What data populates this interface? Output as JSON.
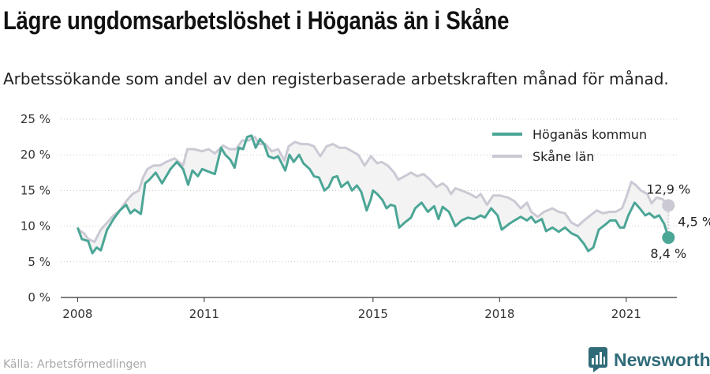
{
  "title": "Lägre ungdomsarbetslöshet i Höganäs än i Skåne",
  "subtitle": "Arbetssökande som andel av den registerbaserade arbetskraften månad för månad.",
  "source": "Källa: Arbetsförmedlingen",
  "brand": "Newsworthy",
  "colors": {
    "hoganas": "#4ca696",
    "skane": "#cbc9d4",
    "band": "#f3f3f3",
    "brand": "#2f6b78"
  },
  "chart_data": {
    "type": "line",
    "x_unit": "year (monthly data)",
    "xlim": [
      2007.6,
      2022.2
    ],
    "xticks": [
      2008,
      2011,
      2015,
      2018,
      2021
    ],
    "xtick_labels": [
      "2008",
      "2011",
      "2015",
      "2018",
      "2021"
    ],
    "ylim": [
      0,
      25
    ],
    "yticks": [
      0,
      5,
      10,
      15,
      20,
      25
    ],
    "ytick_labels": [
      "0 %",
      "5 %",
      "10 %",
      "15 %",
      "20 %",
      "25 %"
    ],
    "grid": "horizontal dotted",
    "legend_position": "top-right",
    "series": [
      {
        "name": "Höganäs kommun",
        "color": "#4ca696",
        "points": [
          [
            2008.0,
            9.8
          ],
          [
            2008.1,
            8.2
          ],
          [
            2008.25,
            7.9
          ],
          [
            2008.35,
            6.2
          ],
          [
            2008.45,
            7.0
          ],
          [
            2008.55,
            6.6
          ],
          [
            2008.7,
            9.5
          ],
          [
            2008.85,
            11.0
          ],
          [
            2009.0,
            12.2
          ],
          [
            2009.15,
            13.0
          ],
          [
            2009.25,
            11.8
          ],
          [
            2009.35,
            12.3
          ],
          [
            2009.5,
            11.7
          ],
          [
            2009.6,
            16.0
          ],
          [
            2009.7,
            16.5
          ],
          [
            2009.85,
            17.5
          ],
          [
            2010.0,
            16.0
          ],
          [
            2010.2,
            18.0
          ],
          [
            2010.35,
            19.0
          ],
          [
            2010.5,
            18.0
          ],
          [
            2010.62,
            15.8
          ],
          [
            2010.72,
            17.8
          ],
          [
            2010.85,
            17.0
          ],
          [
            2010.95,
            18.0
          ],
          [
            2011.25,
            17.3
          ],
          [
            2011.4,
            21.0
          ],
          [
            2011.5,
            20.0
          ],
          [
            2011.62,
            19.3
          ],
          [
            2011.72,
            18.2
          ],
          [
            2011.82,
            21.0
          ],
          [
            2011.92,
            20.8
          ],
          [
            2012.02,
            22.5
          ],
          [
            2012.12,
            22.7
          ],
          [
            2012.22,
            21.0
          ],
          [
            2012.32,
            22.2
          ],
          [
            2012.42,
            21.5
          ],
          [
            2012.52,
            19.8
          ],
          [
            2012.65,
            19.5
          ],
          [
            2012.75,
            19.8
          ],
          [
            2012.92,
            17.8
          ],
          [
            2013.02,
            20.0
          ],
          [
            2013.12,
            19.0
          ],
          [
            2013.25,
            20.0
          ],
          [
            2013.35,
            18.8
          ],
          [
            2013.5,
            18.0
          ],
          [
            2013.6,
            17.0
          ],
          [
            2013.72,
            16.8
          ],
          [
            2013.85,
            15.0
          ],
          [
            2013.95,
            15.5
          ],
          [
            2014.05,
            16.8
          ],
          [
            2014.15,
            17.0
          ],
          [
            2014.25,
            15.5
          ],
          [
            2014.4,
            16.2
          ],
          [
            2014.5,
            15.0
          ],
          [
            2014.62,
            15.7
          ],
          [
            2014.72,
            14.8
          ],
          [
            2014.85,
            12.2
          ],
          [
            2014.95,
            13.8
          ],
          [
            2015.0,
            15.0
          ],
          [
            2015.1,
            14.5
          ],
          [
            2015.22,
            13.7
          ],
          [
            2015.32,
            12.5
          ],
          [
            2015.42,
            13.0
          ],
          [
            2015.52,
            12.8
          ],
          [
            2015.62,
            9.8
          ],
          [
            2015.75,
            10.5
          ],
          [
            2015.9,
            11.2
          ],
          [
            2016.0,
            12.5
          ],
          [
            2016.15,
            13.3
          ],
          [
            2016.3,
            12.0
          ],
          [
            2016.45,
            12.8
          ],
          [
            2016.55,
            11.0
          ],
          [
            2016.65,
            12.7
          ],
          [
            2016.8,
            12.0
          ],
          [
            2016.95,
            10.0
          ],
          [
            2017.1,
            10.8
          ],
          [
            2017.25,
            11.2
          ],
          [
            2017.4,
            11.0
          ],
          [
            2017.55,
            11.5
          ],
          [
            2017.65,
            11.2
          ],
          [
            2017.8,
            12.5
          ],
          [
            2017.95,
            11.5
          ],
          [
            2018.05,
            9.5
          ],
          [
            2018.2,
            10.2
          ],
          [
            2018.35,
            10.8
          ],
          [
            2018.5,
            11.3
          ],
          [
            2018.65,
            10.8
          ],
          [
            2018.75,
            11.3
          ],
          [
            2018.85,
            10.5
          ],
          [
            2019.0,
            11.0
          ],
          [
            2019.1,
            9.3
          ],
          [
            2019.25,
            9.8
          ],
          [
            2019.4,
            9.2
          ],
          [
            2019.55,
            9.8
          ],
          [
            2019.7,
            9.0
          ],
          [
            2019.85,
            8.6
          ],
          [
            2020.0,
            7.5
          ],
          [
            2020.1,
            6.5
          ],
          [
            2020.22,
            7.0
          ],
          [
            2020.35,
            9.5
          ],
          [
            2020.5,
            10.2
          ],
          [
            2020.62,
            10.8
          ],
          [
            2020.75,
            10.8
          ],
          [
            2020.85,
            9.8
          ],
          [
            2020.95,
            9.8
          ],
          [
            2021.05,
            11.5
          ],
          [
            2021.2,
            13.3
          ],
          [
            2021.32,
            12.5
          ],
          [
            2021.45,
            11.5
          ],
          [
            2021.55,
            11.8
          ],
          [
            2021.67,
            11.2
          ],
          [
            2021.78,
            11.5
          ],
          [
            2021.9,
            10.3
          ],
          [
            2022.0,
            8.4
          ]
        ]
      },
      {
        "name": "Skåne län",
        "color": "#cbc9d4",
        "points": [
          [
            2008.0,
            9.6
          ],
          [
            2008.15,
            9.0
          ],
          [
            2008.25,
            8.2
          ],
          [
            2008.4,
            7.8
          ],
          [
            2008.55,
            9.5
          ],
          [
            2008.7,
            10.5
          ],
          [
            2008.85,
            11.5
          ],
          [
            2009.0,
            12.2
          ],
          [
            2009.15,
            13.5
          ],
          [
            2009.3,
            14.5
          ],
          [
            2009.45,
            15.0
          ],
          [
            2009.55,
            16.8
          ],
          [
            2009.65,
            18.0
          ],
          [
            2009.8,
            18.5
          ],
          [
            2009.95,
            18.5
          ],
          [
            2010.1,
            19.0
          ],
          [
            2010.3,
            19.5
          ],
          [
            2010.5,
            18.5
          ],
          [
            2010.6,
            20.8
          ],
          [
            2010.75,
            20.8
          ],
          [
            2010.95,
            20.5
          ],
          [
            2011.1,
            20.8
          ],
          [
            2011.25,
            20.2
          ],
          [
            2011.45,
            21.3
          ],
          [
            2011.6,
            20.8
          ],
          [
            2011.75,
            20.8
          ],
          [
            2011.9,
            22.0
          ],
          [
            2012.05,
            22.0
          ],
          [
            2012.2,
            22.5
          ],
          [
            2012.3,
            21.5
          ],
          [
            2012.45,
            21.5
          ],
          [
            2012.6,
            20.5
          ],
          [
            2012.75,
            20.8
          ],
          [
            2012.9,
            19.2
          ],
          [
            2013.0,
            21.2
          ],
          [
            2013.15,
            21.8
          ],
          [
            2013.3,
            21.5
          ],
          [
            2013.45,
            21.5
          ],
          [
            2013.6,
            21.2
          ],
          [
            2013.75,
            19.8
          ],
          [
            2013.9,
            21.2
          ],
          [
            2014.05,
            21.5
          ],
          [
            2014.2,
            21.0
          ],
          [
            2014.35,
            21.0
          ],
          [
            2014.5,
            20.5
          ],
          [
            2014.65,
            20.0
          ],
          [
            2014.8,
            18.5
          ],
          [
            2014.95,
            19.8
          ],
          [
            2015.1,
            18.8
          ],
          [
            2015.2,
            19.0
          ],
          [
            2015.35,
            18.5
          ],
          [
            2015.5,
            17.5
          ],
          [
            2015.6,
            16.5
          ],
          [
            2015.75,
            17.0
          ],
          [
            2015.9,
            17.5
          ],
          [
            2016.05,
            17.0
          ],
          [
            2016.2,
            17.3
          ],
          [
            2016.35,
            16.5
          ],
          [
            2016.5,
            15.5
          ],
          [
            2016.65,
            16.0
          ],
          [
            2016.75,
            15.5
          ],
          [
            2016.85,
            14.5
          ],
          [
            2016.95,
            15.3
          ],
          [
            2017.1,
            15.0
          ],
          [
            2017.3,
            14.5
          ],
          [
            2017.45,
            14.0
          ],
          [
            2017.55,
            14.5
          ],
          [
            2017.7,
            13.0
          ],
          [
            2017.85,
            14.3
          ],
          [
            2018.0,
            14.3
          ],
          [
            2018.2,
            14.0
          ],
          [
            2018.35,
            13.5
          ],
          [
            2018.5,
            12.5
          ],
          [
            2018.65,
            13.3
          ],
          [
            2018.75,
            12.0
          ],
          [
            2018.9,
            11.3
          ],
          [
            2019.05,
            12.0
          ],
          [
            2019.25,
            12.5
          ],
          [
            2019.4,
            12.0
          ],
          [
            2019.55,
            11.8
          ],
          [
            2019.7,
            10.5
          ],
          [
            2019.85,
            10.0
          ],
          [
            2020.0,
            10.8
          ],
          [
            2020.15,
            11.5
          ],
          [
            2020.3,
            12.2
          ],
          [
            2020.45,
            11.8
          ],
          [
            2020.6,
            12.0
          ],
          [
            2020.75,
            12.0
          ],
          [
            2020.9,
            12.5
          ],
          [
            2021.0,
            14.0
          ],
          [
            2021.12,
            16.2
          ],
          [
            2021.22,
            15.8
          ],
          [
            2021.35,
            15.0
          ],
          [
            2021.5,
            14.5
          ],
          [
            2021.6,
            13.2
          ],
          [
            2021.72,
            14.0
          ],
          [
            2021.85,
            13.8
          ],
          [
            2022.0,
            12.9
          ]
        ]
      }
    ],
    "annotations": {
      "skane_last": "12,9 %",
      "hoganas_last": "8,4 %",
      "difference": "4,5 %"
    }
  }
}
